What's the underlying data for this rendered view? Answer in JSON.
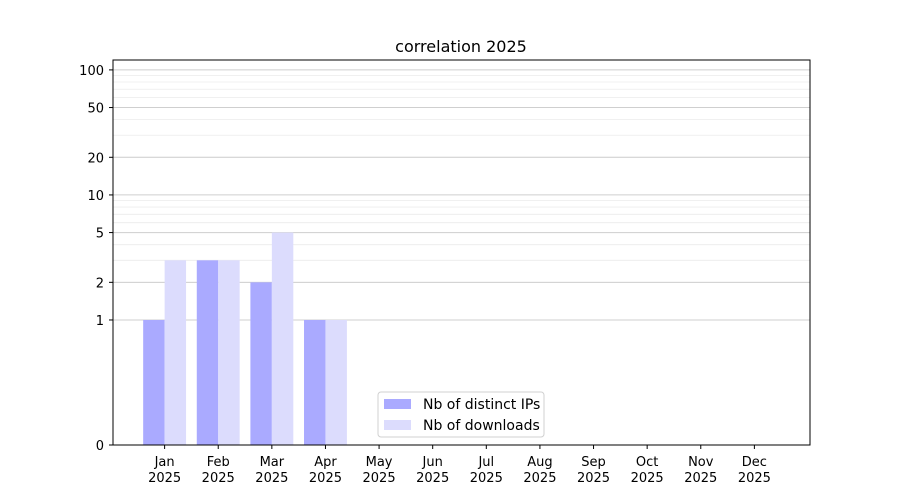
{
  "chart_data": {
    "type": "bar",
    "title": "correlation 2025",
    "xlabel": "",
    "ylabel": "",
    "yscale": "symlog",
    "ylim": [
      0,
      120
    ],
    "yticks": [
      0,
      1,
      2,
      5,
      10,
      20,
      50,
      100
    ],
    "grid": "horizontal",
    "legend_placement": "lower-center",
    "categories": [
      "Jan",
      "Feb",
      "Mar",
      "Apr",
      "May",
      "Jun",
      "Jul",
      "Aug",
      "Sep",
      "Oct",
      "Nov",
      "Dec"
    ],
    "category_year": "2025",
    "series": [
      {
        "name": "Nb of distinct IPs",
        "color": "#aaaaff",
        "values": [
          1,
          3,
          2,
          1,
          0,
          0,
          0,
          0,
          0,
          0,
          0,
          0
        ]
      },
      {
        "name": "Nb of downloads",
        "color": "#dcdcfd",
        "values": [
          3,
          3,
          5,
          1,
          0,
          0,
          0,
          0,
          0,
          0,
          0,
          0
        ]
      }
    ]
  }
}
